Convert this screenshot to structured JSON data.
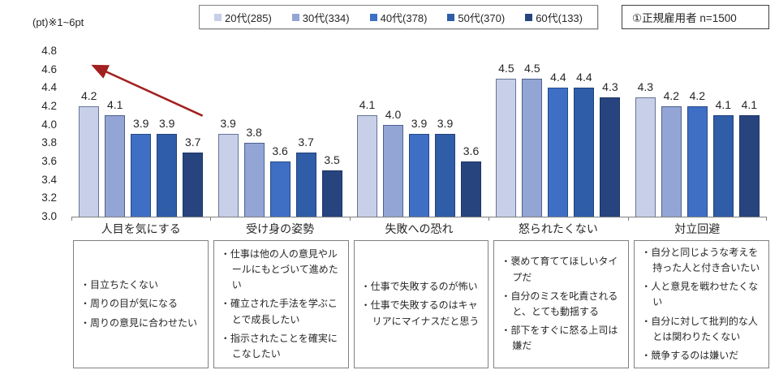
{
  "header": {
    "axis_note": "(pt)※1~6pt",
    "info_box": "①正規雇用者  n=1500"
  },
  "legend": [
    {
      "label": "20代(285)",
      "color": "#c7cfe9"
    },
    {
      "label": "30代(334)",
      "color": "#93a5d5"
    },
    {
      "label": "40代(378)",
      "color": "#3e6fc5"
    },
    {
      "label": "50代(370)",
      "color": "#2f5da8"
    },
    {
      "label": "60代(133)",
      "color": "#27447f"
    }
  ],
  "chart_data": {
    "type": "bar",
    "title": "",
    "xlabel": "",
    "ylabel": "(pt)※1~6pt",
    "categories": [
      "人目を気にする",
      "受け身の姿勢",
      "失敗への恐れ",
      "怒られたくない",
      "対立回避"
    ],
    "series": [
      {
        "name": "20代(285)",
        "color": "#c7cfe9",
        "values": [
          4.2,
          3.9,
          4.1,
          4.5,
          4.3
        ]
      },
      {
        "name": "30代(334)",
        "color": "#93a5d5",
        "values": [
          4.1,
          3.8,
          4.0,
          4.5,
          4.2
        ]
      },
      {
        "name": "40代(378)",
        "color": "#3e6fc5",
        "values": [
          3.9,
          3.6,
          3.9,
          4.4,
          4.2
        ]
      },
      {
        "name": "50代(370)",
        "color": "#2f5da8",
        "values": [
          3.9,
          3.7,
          3.9,
          4.4,
          4.1
        ]
      },
      {
        "name": "60代(133)",
        "color": "#27447f",
        "values": [
          3.7,
          3.5,
          3.6,
          4.3,
          4.1
        ]
      }
    ],
    "ylim": [
      3.0,
      4.8
    ],
    "ytick_step": 0.2,
    "grid": false,
    "legend_position": "top",
    "annotations": "dark red upward trend arrow above each category group pointing from oldest to youngest bar",
    "arrow_color": "#a32020"
  },
  "boxes": [
    {
      "items": [
        "目立ちたくない",
        "周りの目が気になる",
        "周りの意見に合わせたい"
      ]
    },
    {
      "items": [
        "仕事は他の人の意見やルールにもとづいて進めたい",
        "確立された手法を学ぶことで成長したい",
        "指示されたことを確実にこなしたい"
      ]
    },
    {
      "items": [
        "仕事で失敗するのが怖い",
        "仕事で失敗するのはキャリアにマイナスだと思う"
      ]
    },
    {
      "items": [
        "褒めて育ててほしいタイプだ",
        "自分のミスを叱責されると、とても動揺する",
        "部下をすぐに怒る上司は嫌だ"
      ]
    },
    {
      "items": [
        "自分と同じような考えを持った人と付き合いたい",
        "人と意見を戦わせたくない",
        "自分に対して批判的な人とは関わりたくない",
        "競争するのは嫌いだ"
      ]
    }
  ]
}
